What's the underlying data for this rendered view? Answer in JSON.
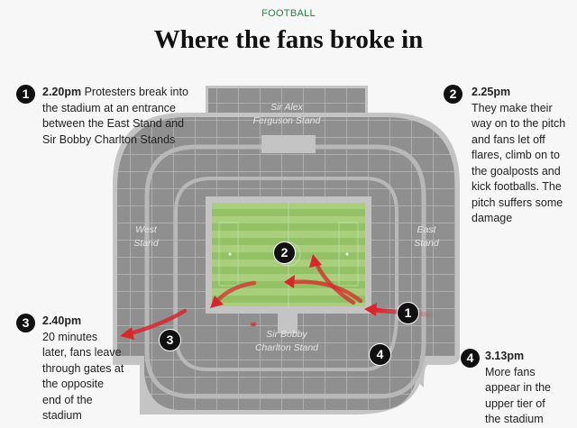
{
  "header": {
    "kicker": "FOOTBALL",
    "title": "Where the fans broke in"
  },
  "stands": {
    "north": [
      "Sir Alex",
      "Ferguson Stand"
    ],
    "west": [
      "West",
      "Stand"
    ],
    "east": [
      "East",
      "Stand"
    ],
    "south": [
      "Sir Bobby",
      "Charlton Stand"
    ]
  },
  "colors": {
    "seating": "#8f8f8f",
    "concourse": "#c4c4c4",
    "pitch_light": "#a9cf7c",
    "pitch_dark": "#93c166",
    "arrow": "#d9262b",
    "marker": "#111111"
  },
  "callouts": [
    {
      "number": "1",
      "time": "2.20pm",
      "text": "Protesters break into the stadium at an entrance between the East Stand and Sir Bobby Charlton Stands"
    },
    {
      "number": "2",
      "time": "2.25pm",
      "text": "They make their way on to the pitch and fans let off flares, climb on to the goalposts and kick footballs. The pitch suffers some damage"
    },
    {
      "number": "3",
      "time": "2.40pm",
      "text": "20 minutes later, fans leave through gates at the opposite end of the stadium"
    },
    {
      "number": "4",
      "time": "3.13pm",
      "text": "More fans appear in the upper tier of the stadium"
    }
  ]
}
